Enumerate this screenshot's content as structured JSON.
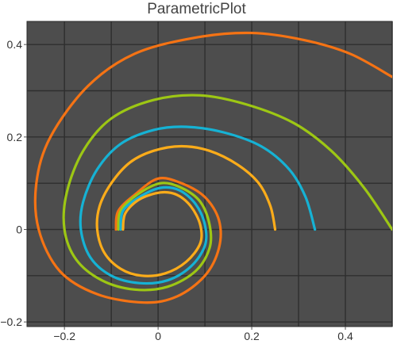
{
  "chart_data": {
    "type": "line",
    "title": "ParametricPlot",
    "xlabel": "",
    "ylabel": "",
    "xlim": [
      -0.28,
      0.5
    ],
    "ylim": [
      -0.21,
      0.45
    ],
    "x_ticks": [
      -0.2,
      0,
      0.2,
      0.4
    ],
    "y_ticks": [
      -0.2,
      0,
      0.2,
      0.4
    ],
    "x_tick_labels": [
      "−0.2",
      "0",
      "0.2",
      "0.4"
    ],
    "y_tick_labels": [
      "−0.2",
      "0",
      "0.2",
      "0.4"
    ],
    "grid": true,
    "background_color": "#4d4d4d",
    "grid_color": "#2e2e2e",
    "series": [
      {
        "color": "#f57314",
        "points": [
          [
            -0.09,
            0.0
          ],
          [
            -0.085,
            0.04
          ],
          [
            -0.05,
            0.075
          ],
          [
            0.0,
            0.11
          ],
          [
            0.05,
            0.1
          ],
          [
            0.1,
            0.07
          ],
          [
            0.13,
            0.02
          ],
          [
            0.13,
            -0.04
          ],
          [
            0.1,
            -0.1
          ],
          [
            0.04,
            -0.145
          ],
          [
            -0.03,
            -0.158
          ],
          [
            -0.13,
            -0.14
          ],
          [
            -0.21,
            -0.09
          ],
          [
            -0.255,
            0.0
          ],
          [
            -0.26,
            0.1
          ],
          [
            -0.23,
            0.2
          ],
          [
            -0.15,
            0.31
          ],
          [
            -0.05,
            0.38
          ],
          [
            0.08,
            0.415
          ],
          [
            0.2,
            0.425
          ],
          [
            0.31,
            0.41
          ],
          [
            0.41,
            0.38
          ],
          [
            0.5,
            0.33
          ]
        ]
      },
      {
        "color": "#9dc714",
        "points": [
          [
            -0.085,
            0.0
          ],
          [
            -0.08,
            0.04
          ],
          [
            -0.045,
            0.075
          ],
          [
            0.005,
            0.1
          ],
          [
            0.05,
            0.09
          ],
          [
            0.09,
            0.06
          ],
          [
            0.11,
            0.01
          ],
          [
            0.11,
            -0.04
          ],
          [
            0.08,
            -0.09
          ],
          [
            0.02,
            -0.124
          ],
          [
            -0.05,
            -0.13
          ],
          [
            -0.12,
            -0.11
          ],
          [
            -0.175,
            -0.065
          ],
          [
            -0.2,
            0.0
          ],
          [
            -0.195,
            0.08
          ],
          [
            -0.16,
            0.17
          ],
          [
            -0.1,
            0.24
          ],
          [
            -0.01,
            0.28
          ],
          [
            0.09,
            0.29
          ],
          [
            0.19,
            0.27
          ],
          [
            0.29,
            0.23
          ],
          [
            0.37,
            0.17
          ],
          [
            0.44,
            0.09
          ],
          [
            0.5,
            0.0
          ]
        ]
      },
      {
        "color": "#16b2d4",
        "points": [
          [
            -0.08,
            0.0
          ],
          [
            -0.075,
            0.04
          ],
          [
            -0.04,
            0.07
          ],
          [
            0.005,
            0.09
          ],
          [
            0.045,
            0.085
          ],
          [
            0.08,
            0.055
          ],
          [
            0.1,
            0.01
          ],
          [
            0.1,
            -0.035
          ],
          [
            0.07,
            -0.08
          ],
          [
            0.02,
            -0.11
          ],
          [
            -0.04,
            -0.116
          ],
          [
            -0.1,
            -0.1
          ],
          [
            -0.145,
            -0.06
          ],
          [
            -0.165,
            0.0
          ],
          [
            -0.16,
            0.06
          ],
          [
            -0.13,
            0.13
          ],
          [
            -0.08,
            0.185
          ],
          [
            -0.01,
            0.215
          ],
          [
            0.06,
            0.222
          ],
          [
            0.14,
            0.21
          ],
          [
            0.22,
            0.18
          ],
          [
            0.28,
            0.13
          ],
          [
            0.315,
            0.07
          ],
          [
            0.335,
            0.0
          ]
        ]
      },
      {
        "color": "#fcac1a",
        "points": [
          [
            -0.075,
            0.0
          ],
          [
            -0.07,
            0.035
          ],
          [
            -0.04,
            0.065
          ],
          [
            0.005,
            0.08
          ],
          [
            0.04,
            0.075
          ],
          [
            0.07,
            0.05
          ],
          [
            0.09,
            0.01
          ],
          [
            0.09,
            -0.03
          ],
          [
            0.06,
            -0.07
          ],
          [
            0.015,
            -0.095
          ],
          [
            -0.035,
            -0.1
          ],
          [
            -0.08,
            -0.085
          ],
          [
            -0.115,
            -0.05
          ],
          [
            -0.13,
            0.0
          ],
          [
            -0.125,
            0.05
          ],
          [
            -0.1,
            0.1
          ],
          [
            -0.06,
            0.145
          ],
          [
            -0.01,
            0.17
          ],
          [
            0.05,
            0.18
          ],
          [
            0.11,
            0.17
          ],
          [
            0.17,
            0.14
          ],
          [
            0.215,
            0.1
          ],
          [
            0.24,
            0.05
          ],
          [
            0.25,
            0.0
          ]
        ]
      }
    ]
  }
}
